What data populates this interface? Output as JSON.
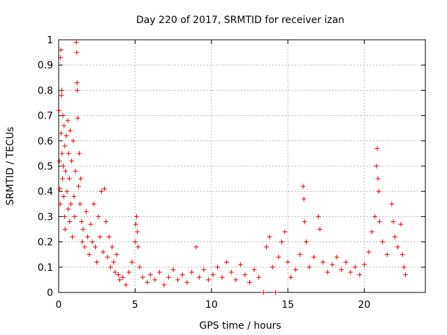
{
  "chart_data": {
    "type": "scatter",
    "title": "Day 220 of 2017, SRMTID for receiver izan",
    "xlabel": "GPS time / hours",
    "ylabel": "SRMTID / TECUs",
    "xlim": [
      0,
      24
    ],
    "ylim": [
      0,
      1
    ],
    "xticks": [
      0,
      5,
      10,
      15,
      20
    ],
    "xtick_labels": [
      "0",
      "5",
      "10",
      "15",
      "20"
    ],
    "yticks": [
      0,
      0.1,
      0.2,
      0.3,
      0.4,
      0.5,
      0.6,
      0.7,
      0.8,
      0.9,
      1
    ],
    "ytick_labels": [
      "0",
      "0.1",
      "0.2",
      "0.3",
      "0.4",
      "0.5",
      "0.6",
      "0.7",
      "0.8",
      "0.9",
      "1"
    ],
    "grid": true,
    "marker": "+",
    "color": "#e00000",
    "series": [
      {
        "name": "SRMTID",
        "points": [
          [
            0.02,
            0.72
          ],
          [
            0.05,
            0.52
          ],
          [
            0.08,
            0.41
          ],
          [
            0.1,
            0.35
          ],
          [
            0.12,
            0.93
          ],
          [
            0.14,
            0.96
          ],
          [
            0.15,
            0.63
          ],
          [
            0.18,
            0.78
          ],
          [
            0.2,
            0.8
          ],
          [
            0.22,
            0.55
          ],
          [
            0.25,
            0.45
          ],
          [
            0.28,
            0.7
          ],
          [
            0.3,
            0.5
          ],
          [
            0.33,
            0.38
          ],
          [
            0.35,
            0.66
          ],
          [
            0.38,
            0.3
          ],
          [
            0.4,
            0.58
          ],
          [
            0.42,
            0.25
          ],
          [
            0.45,
            0.48
          ],
          [
            0.5,
            0.62
          ],
          [
            0.55,
            0.4
          ],
          [
            0.6,
            0.68
          ],
          [
            0.62,
            0.33
          ],
          [
            0.65,
            0.55
          ],
          [
            0.7,
            0.45
          ],
          [
            0.72,
            0.28
          ],
          [
            0.75,
            0.64
          ],
          [
            0.8,
            0.35
          ],
          [
            0.85,
            0.52
          ],
          [
            0.9,
            0.22
          ],
          [
            0.95,
            0.6
          ],
          [
            1.0,
            0.38
          ],
          [
            1.05,
            0.3
          ],
          [
            1.1,
            0.48
          ],
          [
            1.15,
            0.99
          ],
          [
            1.18,
            0.95
          ],
          [
            1.2,
            0.83
          ],
          [
            1.22,
            0.8
          ],
          [
            1.25,
            0.69
          ],
          [
            1.3,
            0.42
          ],
          [
            1.35,
            0.55
          ],
          [
            1.4,
            0.35
          ],
          [
            1.45,
            0.45
          ],
          [
            1.5,
            0.28
          ],
          [
            1.55,
            0.2
          ],
          [
            1.6,
            0.25
          ],
          [
            1.7,
            0.18
          ],
          [
            1.8,
            0.32
          ],
          [
            1.9,
            0.22
          ],
          [
            2.0,
            0.15
          ],
          [
            2.1,
            0.27
          ],
          [
            2.2,
            0.2
          ],
          [
            2.3,
            0.35
          ],
          [
            2.4,
            0.18
          ],
          [
            2.5,
            0.12
          ],
          [
            2.6,
            0.3
          ],
          [
            2.7,
            0.22
          ],
          [
            2.8,
            0.4
          ],
          [
            2.9,
            0.16
          ],
          [
            3.0,
            0.41
          ],
          [
            3.1,
            0.28
          ],
          [
            3.2,
            0.14
          ],
          [
            3.3,
            0.22
          ],
          [
            3.4,
            0.1
          ],
          [
            3.5,
            0.18
          ],
          [
            3.6,
            0.12
          ],
          [
            3.7,
            0.08
          ],
          [
            3.8,
            0.15
          ],
          [
            3.9,
            0.07
          ],
          [
            4.0,
            0.05
          ],
          [
            4.2,
            0.06
          ],
          [
            4.4,
            0.03
          ],
          [
            4.6,
            0.08
          ],
          [
            4.8,
            0.12
          ],
          [
            5.0,
            0.2
          ],
          [
            5.05,
            0.27
          ],
          [
            5.1,
            0.3
          ],
          [
            5.15,
            0.24
          ],
          [
            5.2,
            0.18
          ],
          [
            5.3,
            0.1
          ],
          [
            5.5,
            0.06
          ],
          [
            5.8,
            0.04
          ],
          [
            6.0,
            0.07
          ],
          [
            6.3,
            0.05
          ],
          [
            6.6,
            0.08
          ],
          [
            6.9,
            0.03
          ],
          [
            7.2,
            0.06
          ],
          [
            7.5,
            0.09
          ],
          [
            7.8,
            0.05
          ],
          [
            8.1,
            0.07
          ],
          [
            8.4,
            0.04
          ],
          [
            8.7,
            0.08
          ],
          [
            9.0,
            0.18
          ],
          [
            9.2,
            0.06
          ],
          [
            9.5,
            0.09
          ],
          [
            9.8,
            0.05
          ],
          [
            10.1,
            0.07
          ],
          [
            10.4,
            0.1
          ],
          [
            10.7,
            0.06
          ],
          [
            11.0,
            0.12
          ],
          [
            11.3,
            0.08
          ],
          [
            11.6,
            0.05
          ],
          [
            11.9,
            0.11
          ],
          [
            12.2,
            0.07
          ],
          [
            12.5,
            0.04
          ],
          [
            12.8,
            0.09
          ],
          [
            13.1,
            0.06
          ],
          [
            13.4,
            0.0
          ],
          [
            13.6,
            0.18
          ],
          [
            13.8,
            0.22
          ],
          [
            14.0,
            0.1
          ],
          [
            14.2,
            0.0
          ],
          [
            14.4,
            0.14
          ],
          [
            14.6,
            0.2
          ],
          [
            14.8,
            0.24
          ],
          [
            15.0,
            0.12
          ],
          [
            15.2,
            0.06
          ],
          [
            15.5,
            0.09
          ],
          [
            15.8,
            0.15
          ],
          [
            16.0,
            0.42
          ],
          [
            16.05,
            0.37
          ],
          [
            16.1,
            0.28
          ],
          [
            16.2,
            0.2
          ],
          [
            16.4,
            0.1
          ],
          [
            16.7,
            0.14
          ],
          [
            17.0,
            0.3
          ],
          [
            17.1,
            0.25
          ],
          [
            17.3,
            0.12
          ],
          [
            17.6,
            0.08
          ],
          [
            17.9,
            0.11
          ],
          [
            18.2,
            0.14
          ],
          [
            18.5,
            0.09
          ],
          [
            18.8,
            0.12
          ],
          [
            19.1,
            0.08
          ],
          [
            19.4,
            0.1
          ],
          [
            19.7,
            0.07
          ],
          [
            20.0,
            0.11
          ],
          [
            20.3,
            0.16
          ],
          [
            20.5,
            0.24
          ],
          [
            20.7,
            0.3
          ],
          [
            20.8,
            0.5
          ],
          [
            20.85,
            0.57
          ],
          [
            20.9,
            0.45
          ],
          [
            20.95,
            0.4
          ],
          [
            21.0,
            0.28
          ],
          [
            21.2,
            0.2
          ],
          [
            21.5,
            0.15
          ],
          [
            21.8,
            0.35
          ],
          [
            21.9,
            0.28
          ],
          [
            22.0,
            0.22
          ],
          [
            22.2,
            0.18
          ],
          [
            22.4,
            0.27
          ],
          [
            22.5,
            0.15
          ],
          [
            22.6,
            0.1
          ],
          [
            22.7,
            0.07
          ]
        ]
      }
    ]
  }
}
